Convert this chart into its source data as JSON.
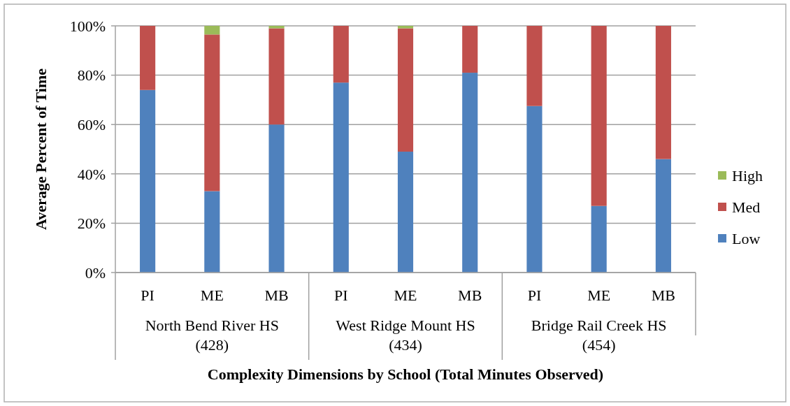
{
  "chart_data": {
    "type": "bar",
    "stacked": true,
    "categories": [
      "PI",
      "ME",
      "MB",
      "PI",
      "ME",
      "MB",
      "PI",
      "ME",
      "MB"
    ],
    "series": [
      {
        "name": "Low",
        "color": "#4f81bd",
        "values": [
          74,
          33,
          60,
          77,
          49,
          81,
          67.5,
          27,
          46
        ]
      },
      {
        "name": "Med",
        "color": "#c0504d",
        "values": [
          26,
          63.5,
          39,
          23,
          50,
          19,
          32.5,
          73,
          54
        ]
      },
      {
        "name": "High",
        "color": "#9bbb59",
        "values": [
          0,
          3.5,
          1,
          0,
          1,
          0,
          0,
          0,
          0
        ]
      }
    ],
    "ylim": [
      0,
      100
    ],
    "yticks": [
      {
        "value": 0,
        "label": "0%"
      },
      {
        "value": 20,
        "label": "20%"
      },
      {
        "value": 40,
        "label": "40%"
      },
      {
        "value": 60,
        "label": "60%"
      },
      {
        "value": 80,
        "label": "80%"
      },
      {
        "value": 100,
        "label": "100%"
      }
    ],
    "grid": "y",
    "legend": "right",
    "ylabel": "Average Percent of Time",
    "xlabel": "Complexity Dimensions by School (Total Minutes Observed)",
    "annotations": [
      "North Bend River HS\n(428)",
      "West Ridge Mount HS\n(434)",
      "Bridge Rail Creek HS\n(454)"
    ]
  }
}
